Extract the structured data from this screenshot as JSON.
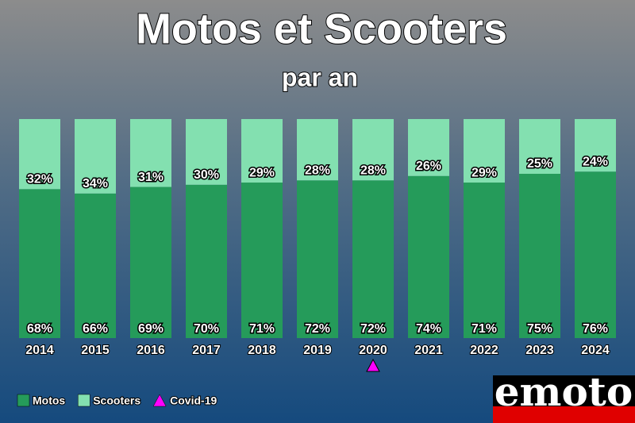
{
  "chart_data": {
    "type": "stacked_bar",
    "title": "Motos et Scooters",
    "subtitle": "par an",
    "categories": [
      "2014",
      "2015",
      "2016",
      "2017",
      "2018",
      "2019",
      "2020",
      "2021",
      "2022",
      "2023",
      "2024"
    ],
    "series": [
      {
        "name": "Motos",
        "color": "#259b5a",
        "values": [
          68,
          66,
          69,
          70,
          71,
          72,
          72,
          74,
          71,
          75,
          76
        ],
        "value_labels": [
          "68%",
          "66%",
          "69%",
          "70%",
          "71%",
          "72%",
          "72%",
          "74%",
          "71%",
          "75%",
          "76%"
        ]
      },
      {
        "name": "Scooters",
        "color": "#83e0b0",
        "values": [
          32,
          34,
          31,
          30,
          29,
          28,
          28,
          26,
          29,
          25,
          24
        ],
        "value_labels": [
          "32%",
          "34%",
          "31%",
          "30%",
          "29%",
          "28%",
          "28%",
          "26%",
          "29%",
          "25%",
          "24%"
        ]
      }
    ],
    "markers": [
      {
        "name": "Covid-19",
        "category": "2020",
        "color": "#ff00ff"
      }
    ],
    "ylim": [
      0,
      100
    ],
    "logo": "emoto"
  }
}
